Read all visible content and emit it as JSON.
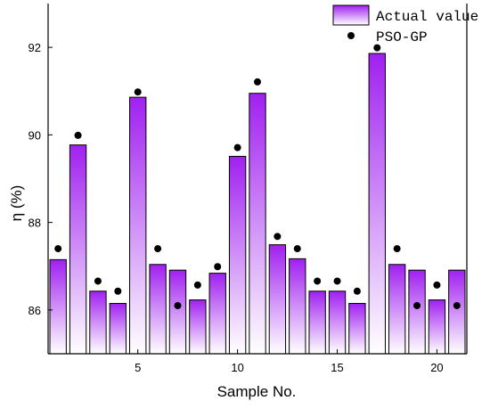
{
  "chart_data": {
    "type": "bar",
    "xlabel": "Sample No.",
    "ylabel": "η (%)",
    "xlim": [
      0.5,
      21.5
    ],
    "ylim": [
      85.0,
      93.0
    ],
    "x_ticks": [
      5,
      10,
      15,
      20
    ],
    "y_ticks": [
      86,
      88,
      90,
      92
    ],
    "legend_position": "top-right",
    "grid": false,
    "categories": [
      1,
      2,
      3,
      4,
      5,
      6,
      7,
      8,
      9,
      10,
      11,
      12,
      13,
      14,
      15,
      16,
      17,
      18,
      19,
      20,
      21
    ],
    "series": [
      {
        "name": "Actual value",
        "type": "bar",
        "color": "#a020f0",
        "values": [
          87.15,
          89.77,
          86.43,
          86.15,
          90.86,
          87.04,
          86.91,
          86.23,
          86.84,
          89.51,
          90.95,
          87.49,
          87.17,
          86.43,
          86.43,
          86.15,
          91.86,
          87.04,
          86.91,
          86.23,
          86.91
        ]
      },
      {
        "name": "PSO-GP",
        "type": "scatter",
        "color": "#000000",
        "values": [
          87.4,
          89.99,
          86.66,
          86.43,
          90.98,
          87.4,
          86.1,
          86.57,
          86.99,
          89.71,
          91.21,
          87.68,
          87.4,
          86.66,
          86.66,
          86.43,
          91.99,
          87.4,
          86.1,
          86.57,
          86.1
        ]
      }
    ]
  }
}
